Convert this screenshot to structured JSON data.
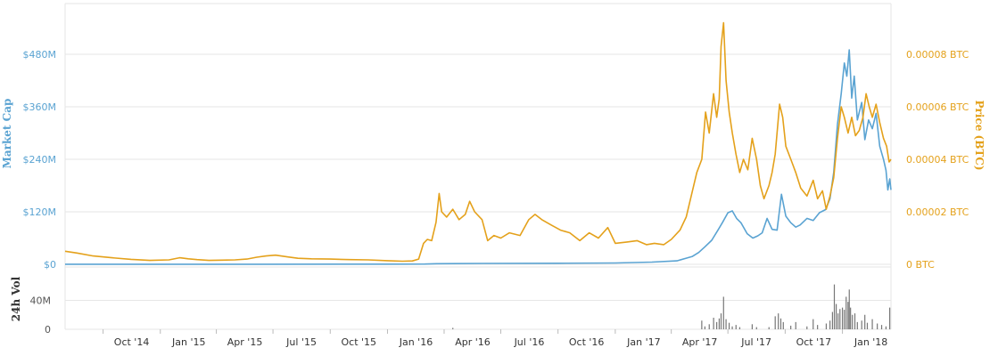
{
  "chart_data": {
    "type": "line",
    "colors": {
      "market_cap": "#5aa3d2",
      "price": "#e4a11b",
      "volume": "#777777",
      "grid": "#e6e6e6"
    },
    "x_range": [
      "2014-08-01",
      "2018-03-20"
    ],
    "x_ticks": [
      {
        "date": "2014-10-01",
        "label": "Oct '14"
      },
      {
        "date": "2015-01-01",
        "label": "Jan '15"
      },
      {
        "date": "2015-04-01",
        "label": "Apr '15"
      },
      {
        "date": "2015-07-01",
        "label": "Jul '15"
      },
      {
        "date": "2015-10-01",
        "label": "Oct '15"
      },
      {
        "date": "2016-01-01",
        "label": "Jan '16"
      },
      {
        "date": "2016-04-01",
        "label": "Apr '16"
      },
      {
        "date": "2016-07-01",
        "label": "Jul '16"
      },
      {
        "date": "2016-10-01",
        "label": "Oct '16"
      },
      {
        "date": "2017-01-01",
        "label": "Jan '17"
      },
      {
        "date": "2017-04-01",
        "label": "Apr '17"
      },
      {
        "date": "2017-07-01",
        "label": "Jul '17"
      },
      {
        "date": "2017-10-01",
        "label": "Oct '17"
      },
      {
        "date": "2018-01-01",
        "label": "Jan '18"
      }
    ],
    "y_left": {
      "title": "Market Cap",
      "range": [
        0,
        480
      ],
      "ticks": [
        {
          "value": 0,
          "label": "$0"
        },
        {
          "value": 120,
          "label": "$120M"
        },
        {
          "value": 240,
          "label": "$240M"
        },
        {
          "value": 360,
          "label": "$360M"
        },
        {
          "value": 480,
          "label": "$480M"
        }
      ]
    },
    "y_right": {
      "title": "Price (BTC)",
      "range": [
        0,
        8e-05
      ],
      "ticks": [
        {
          "value": 0,
          "label": "0 BTC"
        },
        {
          "value": 2e-05,
          "label": "0.00002 BTC"
        },
        {
          "value": 4e-05,
          "label": "0.00004 BTC"
        },
        {
          "value": 6e-05,
          "label": "0.00006 BTC"
        },
        {
          "value": 8e-05,
          "label": "0.00008 BTC"
        }
      ]
    },
    "y_volume": {
      "title": "24h Vol",
      "range": [
        0,
        80
      ],
      "ticks": [
        {
          "value": 0,
          "label": "0"
        },
        {
          "value": 40,
          "label": "40M"
        }
      ]
    },
    "series": [
      {
        "name": "Market Cap",
        "axis": "left",
        "points": [
          [
            "2014-08-01",
            0.3
          ],
          [
            "2015-06-01",
            0.3
          ],
          [
            "2016-01-01",
            0.5
          ],
          [
            "2016-03-01",
            0.6
          ],
          [
            "2016-03-20",
            1.5
          ],
          [
            "2016-06-01",
            2
          ],
          [
            "2016-10-01",
            2.5
          ],
          [
            "2017-01-01",
            3
          ],
          [
            "2017-03-01",
            5
          ],
          [
            "2017-04-10",
            8
          ],
          [
            "2017-04-25",
            14
          ],
          [
            "2017-05-05",
            18
          ],
          [
            "2017-05-15",
            27
          ],
          [
            "2017-05-25",
            40
          ],
          [
            "2017-06-05",
            55
          ],
          [
            "2017-06-15",
            78
          ],
          [
            "2017-06-22",
            95
          ],
          [
            "2017-07-01",
            118
          ],
          [
            "2017-07-08",
            122
          ],
          [
            "2017-07-15",
            105
          ],
          [
            "2017-07-22",
            95
          ],
          [
            "2017-08-01",
            70
          ],
          [
            "2017-08-10",
            60
          ],
          [
            "2017-08-18",
            65
          ],
          [
            "2017-08-25",
            72
          ],
          [
            "2017-09-02",
            105
          ],
          [
            "2017-09-10",
            80
          ],
          [
            "2017-09-18",
            78
          ],
          [
            "2017-09-25",
            160
          ],
          [
            "2017-10-02",
            110
          ],
          [
            "2017-10-10",
            95
          ],
          [
            "2017-10-18",
            85
          ],
          [
            "2017-10-25",
            90
          ],
          [
            "2017-11-05",
            105
          ],
          [
            "2017-11-15",
            100
          ],
          [
            "2017-11-25",
            118
          ],
          [
            "2017-12-05",
            125
          ],
          [
            "2017-12-12",
            150
          ],
          [
            "2017-12-18",
            210
          ],
          [
            "2017-12-24",
            320
          ],
          [
            "2017-12-30",
            390
          ],
          [
            "2018-01-04",
            460
          ],
          [
            "2018-01-08",
            430
          ],
          [
            "2018-01-12",
            490
          ],
          [
            "2018-01-16",
            380
          ],
          [
            "2018-01-20",
            430
          ],
          [
            "2018-01-25",
            330
          ],
          [
            "2018-02-01",
            370
          ],
          [
            "2018-02-06",
            285
          ],
          [
            "2018-02-12",
            330
          ],
          [
            "2018-02-18",
            310
          ],
          [
            "2018-02-24",
            345
          ],
          [
            "2018-03-02",
            270
          ],
          [
            "2018-03-08",
            240
          ],
          [
            "2018-03-12",
            215
          ],
          [
            "2018-03-15",
            170
          ],
          [
            "2018-03-18",
            195
          ],
          [
            "2018-03-20",
            170
          ]
        ]
      },
      {
        "name": "Price",
        "axis": "right",
        "points": [
          [
            "2014-08-01",
            5e-06
          ],
          [
            "2014-08-20",
            4.3e-06
          ],
          [
            "2014-09-15",
            3.2e-06
          ],
          [
            "2014-10-15",
            2.5e-06
          ],
          [
            "2014-11-15",
            1.9e-06
          ],
          [
            "2014-12-15",
            1.5e-06
          ],
          [
            "2015-01-15",
            1.7e-06
          ],
          [
            "2015-02-01",
            2.5e-06
          ],
          [
            "2015-02-15",
            2.1e-06
          ],
          [
            "2015-03-01",
            1.8e-06
          ],
          [
            "2015-03-20",
            1.5e-06
          ],
          [
            "2015-04-10",
            1.6e-06
          ],
          [
            "2015-05-01",
            1.7e-06
          ],
          [
            "2015-05-20",
            2e-06
          ],
          [
            "2015-06-05",
            2.7e-06
          ],
          [
            "2015-06-20",
            3.2e-06
          ],
          [
            "2015-07-05",
            3.5e-06
          ],
          [
            "2015-07-25",
            2.8e-06
          ],
          [
            "2015-08-10",
            2.3e-06
          ],
          [
            "2015-09-01",
            2.1e-06
          ],
          [
            "2015-10-01",
            2e-06
          ],
          [
            "2015-11-01",
            1.8e-06
          ],
          [
            "2015-12-01",
            1.7e-06
          ],
          [
            "2016-01-01",
            1.4e-06
          ],
          [
            "2016-01-25",
            1.2e-06
          ],
          [
            "2016-02-10",
            1.3e-06
          ],
          [
            "2016-02-20",
            2e-06
          ],
          [
            "2016-02-28",
            8e-06
          ],
          [
            "2016-03-05",
            9.5e-06
          ],
          [
            "2016-03-12",
            9e-06
          ],
          [
            "2016-03-19",
            1.6e-05
          ],
          [
            "2016-03-24",
            2.7e-05
          ],
          [
            "2016-03-28",
            2e-05
          ],
          [
            "2016-04-05",
            1.8e-05
          ],
          [
            "2016-04-15",
            2.1e-05
          ],
          [
            "2016-04-25",
            1.7e-05
          ],
          [
            "2016-05-05",
            1.9e-05
          ],
          [
            "2016-05-12",
            2.4e-05
          ],
          [
            "2016-05-20",
            2e-05
          ],
          [
            "2016-06-01",
            1.7e-05
          ],
          [
            "2016-06-10",
            9e-06
          ],
          [
            "2016-06-20",
            1.1e-05
          ],
          [
            "2016-07-01",
            1e-05
          ],
          [
            "2016-07-15",
            1.2e-05
          ],
          [
            "2016-08-01",
            1.1e-05
          ],
          [
            "2016-08-15",
            1.7e-05
          ],
          [
            "2016-08-25",
            1.9e-05
          ],
          [
            "2016-09-05",
            1.7e-05
          ],
          [
            "2016-09-20",
            1.5e-05
          ],
          [
            "2016-10-05",
            1.3e-05
          ],
          [
            "2016-10-20",
            1.2e-05
          ],
          [
            "2016-11-05",
            9e-06
          ],
          [
            "2016-11-20",
            1.2e-05
          ],
          [
            "2016-12-05",
            1e-05
          ],
          [
            "2016-12-20",
            1.4e-05
          ],
          [
            "2017-01-01",
            8e-06
          ],
          [
            "2017-01-20",
            8.5e-06
          ],
          [
            "2017-02-05",
            9e-06
          ],
          [
            "2017-02-20",
            7.5e-06
          ],
          [
            "2017-03-05",
            8e-06
          ],
          [
            "2017-03-20",
            7.5e-06
          ],
          [
            "2017-04-01",
            9.5e-06
          ],
          [
            "2017-04-15",
            1.3e-05
          ],
          [
            "2017-04-25",
            1.8e-05
          ],
          [
            "2017-05-05",
            2.8e-05
          ],
          [
            "2017-05-12",
            3.5e-05
          ],
          [
            "2017-05-20",
            4e-05
          ],
          [
            "2017-05-26",
            5.8e-05
          ],
          [
            "2017-06-01",
            5e-05
          ],
          [
            "2017-06-08",
            6.5e-05
          ],
          [
            "2017-06-13",
            5.6e-05
          ],
          [
            "2017-06-17",
            6.3e-05
          ],
          [
            "2017-06-20",
            8.3e-05
          ],
          [
            "2017-06-24",
            9.2e-05
          ],
          [
            "2017-06-28",
            7e-05
          ],
          [
            "2017-07-03",
            5.8e-05
          ],
          [
            "2017-07-08",
            5e-05
          ],
          [
            "2017-07-14",
            4.2e-05
          ],
          [
            "2017-07-20",
            3.5e-05
          ],
          [
            "2017-07-26",
            4e-05
          ],
          [
            "2017-08-02",
            3.6e-05
          ],
          [
            "2017-08-09",
            4.8e-05
          ],
          [
            "2017-08-16",
            4e-05
          ],
          [
            "2017-08-22",
            3e-05
          ],
          [
            "2017-08-28",
            2.5e-05
          ],
          [
            "2017-09-05",
            3e-05
          ],
          [
            "2017-09-10",
            3.5e-05
          ],
          [
            "2017-09-15",
            4.2e-05
          ],
          [
            "2017-09-22",
            6.1e-05
          ],
          [
            "2017-09-27",
            5.6e-05
          ],
          [
            "2017-10-02",
            4.5e-05
          ],
          [
            "2017-10-10",
            4e-05
          ],
          [
            "2017-10-18",
            3.5e-05
          ],
          [
            "2017-10-26",
            2.9e-05
          ],
          [
            "2017-11-05",
            2.6e-05
          ],
          [
            "2017-11-15",
            3.2e-05
          ],
          [
            "2017-11-22",
            2.5e-05
          ],
          [
            "2017-11-30",
            2.8e-05
          ],
          [
            "2017-12-06",
            2.1e-05
          ],
          [
            "2017-12-12",
            2.6e-05
          ],
          [
            "2017-12-18",
            3.3e-05
          ],
          [
            "2017-12-24",
            4.8e-05
          ],
          [
            "2017-12-30",
            6e-05
          ],
          [
            "2018-01-04",
            5.6e-05
          ],
          [
            "2018-01-10",
            5e-05
          ],
          [
            "2018-01-16",
            5.6e-05
          ],
          [
            "2018-01-22",
            4.9e-05
          ],
          [
            "2018-01-28",
            5.1e-05
          ],
          [
            "2018-02-03",
            5.6e-05
          ],
          [
            "2018-02-08",
            6.5e-05
          ],
          [
            "2018-02-13",
            6e-05
          ],
          [
            "2018-02-18",
            5.6e-05
          ],
          [
            "2018-02-24",
            6.1e-05
          ],
          [
            "2018-03-02",
            5.4e-05
          ],
          [
            "2018-03-08",
            4.8e-05
          ],
          [
            "2018-03-13",
            4.5e-05
          ],
          [
            "2018-03-17",
            3.9e-05
          ],
          [
            "2018-03-20",
            4e-05
          ]
        ]
      },
      {
        "name": "24h Vol",
        "axis": "volume",
        "bars": [
          [
            "2016-04-15",
            2
          ],
          [
            "2017-05-20",
            12
          ],
          [
            "2017-05-25",
            4
          ],
          [
            "2017-06-01",
            7
          ],
          [
            "2017-06-08",
            16
          ],
          [
            "2017-06-13",
            10
          ],
          [
            "2017-06-17",
            15
          ],
          [
            "2017-06-20",
            22
          ],
          [
            "2017-06-24",
            45
          ],
          [
            "2017-06-28",
            14
          ],
          [
            "2017-07-03",
            9
          ],
          [
            "2017-07-08",
            4
          ],
          [
            "2017-07-14",
            6
          ],
          [
            "2017-07-20",
            3
          ],
          [
            "2017-08-09",
            7
          ],
          [
            "2017-08-16",
            3
          ],
          [
            "2017-09-05",
            3
          ],
          [
            "2017-09-15",
            18
          ],
          [
            "2017-09-20",
            22
          ],
          [
            "2017-09-24",
            15
          ],
          [
            "2017-09-28",
            10
          ],
          [
            "2017-10-10",
            5
          ],
          [
            "2017-10-18",
            10
          ],
          [
            "2017-11-05",
            4
          ],
          [
            "2017-11-15",
            14
          ],
          [
            "2017-11-22",
            6
          ],
          [
            "2017-12-06",
            8
          ],
          [
            "2017-12-12",
            12
          ],
          [
            "2017-12-16",
            24
          ],
          [
            "2017-12-19",
            62
          ],
          [
            "2017-12-22",
            35
          ],
          [
            "2017-12-25",
            22
          ],
          [
            "2017-12-28",
            28
          ],
          [
            "2018-01-01",
            30
          ],
          [
            "2018-01-04",
            27
          ],
          [
            "2018-01-07",
            45
          ],
          [
            "2018-01-10",
            38
          ],
          [
            "2018-01-12",
            55
          ],
          [
            "2018-01-14",
            30
          ],
          [
            "2018-01-17",
            20
          ],
          [
            "2018-01-21",
            22
          ],
          [
            "2018-01-25",
            10
          ],
          [
            "2018-02-01",
            12
          ],
          [
            "2018-02-06",
            20
          ],
          [
            "2018-02-10",
            9
          ],
          [
            "2018-02-18",
            14
          ],
          [
            "2018-02-26",
            8
          ],
          [
            "2018-03-05",
            6
          ],
          [
            "2018-03-12",
            4
          ],
          [
            "2018-03-18",
            30
          ]
        ]
      }
    ]
  }
}
